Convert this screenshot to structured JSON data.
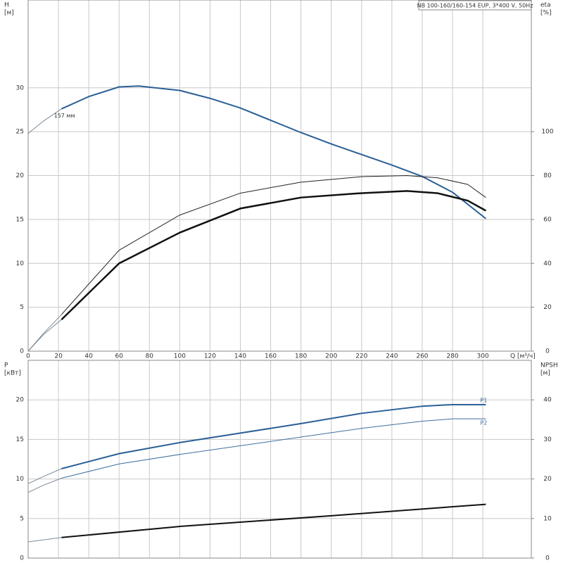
{
  "chart_data": [
    {
      "type": "line",
      "title": "NB 100-160/160-154 EUP, 3*400 V, 50Hz",
      "y_label": [
        "H",
        "[м]"
      ],
      "y2_label": [
        "eta",
        "[%]"
      ],
      "x_label": "Q [м³/ч]",
      "annotation": "157 мм",
      "xlim": [
        0,
        332
      ],
      "xticks": [
        0,
        20,
        40,
        60,
        80,
        100,
        120,
        140,
        160,
        180,
        200,
        220,
        240,
        260,
        280,
        300
      ],
      "ylim": [
        0,
        40
      ],
      "yticks": [
        0,
        5,
        10,
        15,
        20,
        25,
        30
      ],
      "y2lim": [
        0,
        160
      ],
      "y2ticks": [
        0,
        20,
        40,
        60,
        80,
        100
      ],
      "grid": true,
      "series": [
        {
          "color": "#7a8a9a",
          "line_width": 1,
          "x": [
            0,
            5,
            10,
            16,
            22
          ],
          "values": [
            24.8,
            25.5,
            26.2,
            26.9,
            27.6
          ]
        },
        {
          "color": "#2a5f96",
          "line_width": 2,
          "x": [
            22,
            40,
            60,
            73,
            100,
            120,
            140,
            160,
            180,
            200,
            220,
            240,
            260,
            280,
            302
          ],
          "values": [
            27.6,
            29,
            30.1,
            30.2,
            29.7,
            28.8,
            27.7,
            26.3,
            24.9,
            23.6,
            22.4,
            21.2,
            19.9,
            18.1,
            15.1
          ]
        },
        {
          "color": "#7a8a9a",
          "line_width": 1,
          "axis": "y2",
          "x": [
            0,
            10,
            22
          ],
          "values": [
            0,
            8,
            16.7
          ]
        },
        {
          "color": "#222222",
          "line_width": 1,
          "axis": "y2",
          "x": [
            22,
            60,
            100,
            140,
            180,
            220,
            250,
            270,
            290,
            302
          ],
          "values": [
            16.7,
            46,
            62,
            72,
            77,
            79.5,
            80,
            79,
            76,
            70
          ]
        },
        {
          "color": "#7a8a9a",
          "line_width": 1,
          "axis": "y2",
          "x": [
            0,
            10,
            22
          ],
          "values": [
            0,
            7.5,
            14.4
          ]
        },
        {
          "color": "#111111",
          "line_width": 2.5,
          "axis": "y2",
          "x": [
            22,
            60,
            100,
            140,
            180,
            220,
            250,
            270,
            290,
            302
          ],
          "values": [
            14.4,
            40,
            54,
            65,
            70,
            72,
            73,
            72,
            68.6,
            64
          ]
        }
      ]
    },
    {
      "type": "line",
      "y_label": [
        "P",
        "[кВт]"
      ],
      "y2_label": [
        "NPSH",
        "[м]"
      ],
      "xlim": [
        0,
        332
      ],
      "ylim": [
        0,
        25
      ],
      "yticks": [
        0,
        5,
        10,
        15,
        20
      ],
      "y2lim": [
        0,
        50
      ],
      "y2ticks": [
        0,
        10,
        20,
        30,
        40
      ],
      "grid": true,
      "series": [
        {
          "color": "#7a8a9a",
          "line_width": 1,
          "x": [
            0,
            10,
            22
          ],
          "values": [
            9.4,
            10.3,
            11.3
          ]
        },
        {
          "name": "P1",
          "color": "#2a5f96",
          "line_width": 2,
          "x": [
            22,
            60,
            100,
            140,
            180,
            220,
            260,
            280,
            302
          ],
          "values": [
            11.3,
            13.2,
            14.6,
            15.8,
            17.0,
            18.3,
            19.2,
            19.4,
            19.4
          ]
        },
        {
          "color": "#7a8a9a",
          "line_width": 1,
          "x": [
            0,
            10,
            22
          ],
          "values": [
            8.3,
            9.2,
            10.1
          ]
        },
        {
          "name": "P2",
          "color": "#3d6f9f",
          "line_width": 1,
          "x": [
            22,
            60,
            100,
            140,
            180,
            220,
            260,
            280,
            302
          ],
          "values": [
            10.1,
            11.9,
            13.1,
            14.2,
            15.3,
            16.4,
            17.3,
            17.6,
            17.6
          ]
        },
        {
          "color": "#7a8a9a",
          "line_width": 1,
          "axis": "y2",
          "x": [
            0,
            22
          ],
          "values": [
            4.1,
            5.2
          ]
        },
        {
          "color": "#111111",
          "line_width": 2,
          "axis": "y2",
          "x": [
            22,
            100,
            200,
            302
          ],
          "values": [
            5.2,
            8,
            10.7,
            13.6
          ]
        }
      ]
    }
  ]
}
